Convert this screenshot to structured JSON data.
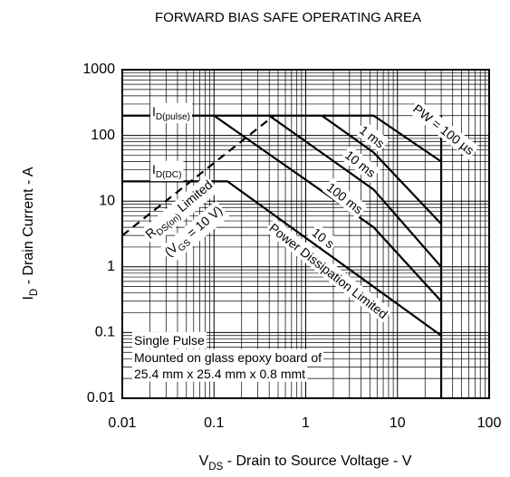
{
  "chart_data": {
    "type": "line",
    "title": "FORWARD BIAS SAFE OPERATING AREA",
    "x_label": [
      {
        "text": "V"
      },
      {
        "text": "DS",
        "sub": true
      },
      {
        "text": " - Drain to Source Voltage - V"
      }
    ],
    "y_label": [
      {
        "text": "I"
      },
      {
        "text": "D",
        "sub": true
      },
      {
        "text": " - Drain Current - A"
      }
    ],
    "xlog": true,
    "ylog": true,
    "grid": true,
    "minor_grid": true,
    "xlim": [
      0.01,
      100
    ],
    "ylim": [
      0.01,
      1000
    ],
    "xticks": [
      0.01,
      0.1,
      1,
      10,
      100
    ],
    "yticks": [
      0.01,
      0.1,
      1,
      10,
      100,
      1000
    ],
    "series": [
      {
        "name": "PW = 100 µs",
        "color": "#000000",
        "x": [
          0.01,
          5.5,
          30
        ],
        "y": [
          200,
          200,
          40
        ]
      },
      {
        "name": "1 ms",
        "color": "#000000",
        "x": [
          1.5,
          5.5,
          30
        ],
        "y": [
          200,
          55,
          4.5
        ]
      },
      {
        "name": "10 ms",
        "color": "#000000",
        "x": [
          0.4,
          5.5,
          30
        ],
        "y": [
          200,
          15,
          1
        ]
      },
      {
        "name": "100 ms",
        "color": "#000000",
        "x": [
          0.1,
          5.5,
          30
        ],
        "y": [
          200,
          4,
          0.3
        ]
      },
      {
        "name": "10 s",
        "color": "#000000",
        "x": [
          0.01,
          0.14,
          30
        ],
        "y": [
          20,
          20,
          0.09
        ]
      },
      {
        "color": "#000000",
        "x": [
          30,
          30
        ],
        "y": [
          200,
          0.01
        ]
      },
      {
        "color": "#000000",
        "dash": true,
        "x": [
          0.01,
          0.45
        ],
        "y": [
          3,
          200
        ]
      }
    ],
    "annotations": [
      {
        "parts": [
          {
            "text": "I"
          },
          {
            "text": "D(pulse)",
            "sub": true
          }
        ]
      },
      {
        "parts": [
          {
            "text": "I"
          },
          {
            "text": "D(DC)",
            "sub": true
          }
        ]
      },
      {
        "parts": [
          {
            "text": "R"
          },
          {
            "text": "DS(on)",
            "sub": true
          },
          {
            "text": " Limited"
          }
        ]
      },
      {
        "parts": [
          {
            "text": "(V"
          },
          {
            "text": "GS",
            "sub": true
          },
          {
            "text": " = 10 V)"
          }
        ]
      },
      {
        "parts": [
          {
            "text": "Power Dissipation Limited"
          }
        ]
      },
      {
        "parts": [
          {
            "text": "Single Pulse"
          }
        ]
      },
      {
        "parts": [
          {
            "text": "Mounted on glass epoxy board of"
          }
        ]
      },
      {
        "parts": [
          {
            "text": "25.4 mm x 25.4 mm x 0.8 mmt"
          }
        ]
      }
    ]
  }
}
